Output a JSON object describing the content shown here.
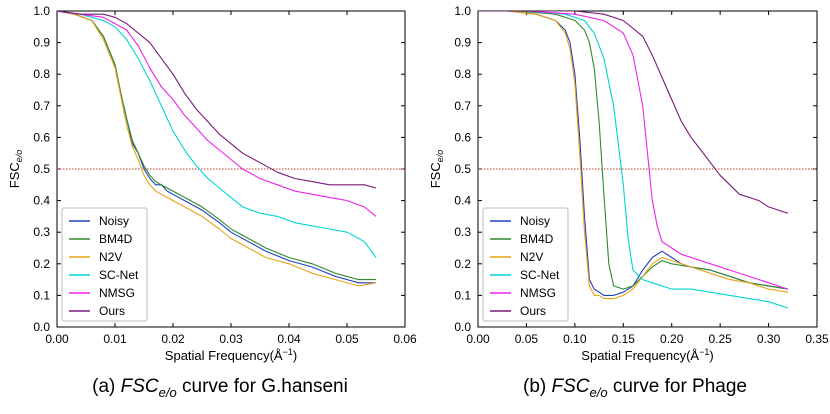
{
  "chart_data": [
    {
      "type": "line",
      "caption_prefix": "(a) ",
      "caption_italic": "FSC",
      "caption_sub": "e/o",
      "caption_suffix": " curve for G.hanseni",
      "xlabel": "Spatial Frequency(Å",
      "xlabel_sup": "−1",
      "xlabel_close": ")",
      "ylabel": "FSC",
      "ylabel_sub": "e/o",
      "xlim": [
        0,
        0.06
      ],
      "ylim": [
        0,
        1.0
      ],
      "xticks": [
        "0.00",
        "0.01",
        "0.02",
        "0.03",
        "0.04",
        "0.05",
        "0.06"
      ],
      "xtick_values": [
        0,
        0.01,
        0.02,
        0.03,
        0.04,
        0.05,
        0.06
      ],
      "yticks": [
        "0.0",
        "0.1",
        "0.2",
        "0.3",
        "0.4",
        "0.5",
        "0.6",
        "0.7",
        "0.8",
        "0.9",
        "1.0"
      ],
      "ytick_values": [
        0,
        0.1,
        0.2,
        0.3,
        0.4,
        0.5,
        0.6,
        0.7,
        0.8,
        0.9,
        1.0
      ],
      "threshold": 0.5,
      "threshold_color": "#c0392b",
      "legend_position": "bottom-left",
      "series": [
        {
          "name": "Noisy",
          "color": "#1f3fbf",
          "x": [
            0,
            0.003,
            0.006,
            0.008,
            0.01,
            0.011,
            0.012,
            0.013,
            0.014,
            0.015,
            0.016,
            0.017,
            0.018,
            0.019,
            0.02,
            0.022,
            0.025,
            0.028,
            0.03,
            0.033,
            0.036,
            0.04,
            0.044,
            0.048,
            0.052,
            0.055
          ],
          "y": [
            1.0,
            0.99,
            0.97,
            0.92,
            0.83,
            0.74,
            0.66,
            0.58,
            0.55,
            0.5,
            0.47,
            0.45,
            0.45,
            0.43,
            0.42,
            0.4,
            0.37,
            0.33,
            0.3,
            0.27,
            0.24,
            0.21,
            0.19,
            0.16,
            0.14,
            0.14
          ]
        },
        {
          "name": "BM4D",
          "color": "#2e8b2e",
          "x": [
            0,
            0.003,
            0.006,
            0.008,
            0.01,
            0.011,
            0.012,
            0.013,
            0.014,
            0.015,
            0.016,
            0.017,
            0.018,
            0.019,
            0.02,
            0.022,
            0.025,
            0.028,
            0.03,
            0.033,
            0.036,
            0.04,
            0.044,
            0.048,
            0.052,
            0.055
          ],
          "y": [
            1.0,
            0.99,
            0.97,
            0.92,
            0.83,
            0.74,
            0.66,
            0.59,
            0.55,
            0.51,
            0.48,
            0.46,
            0.45,
            0.44,
            0.43,
            0.41,
            0.38,
            0.34,
            0.31,
            0.28,
            0.25,
            0.22,
            0.2,
            0.17,
            0.15,
            0.15
          ]
        },
        {
          "name": "N2V",
          "color": "#e8a317",
          "x": [
            0,
            0.003,
            0.006,
            0.008,
            0.01,
            0.011,
            0.012,
            0.013,
            0.014,
            0.015,
            0.016,
            0.017,
            0.018,
            0.019,
            0.02,
            0.022,
            0.025,
            0.028,
            0.03,
            0.033,
            0.036,
            0.04,
            0.044,
            0.048,
            0.052,
            0.055
          ],
          "y": [
            1.0,
            0.99,
            0.97,
            0.91,
            0.82,
            0.73,
            0.64,
            0.57,
            0.53,
            0.48,
            0.45,
            0.43,
            0.42,
            0.41,
            0.4,
            0.38,
            0.35,
            0.31,
            0.28,
            0.25,
            0.22,
            0.2,
            0.17,
            0.15,
            0.13,
            0.14
          ]
        },
        {
          "name": "SC-Net",
          "color": "#00d5d5",
          "x": [
            0,
            0.004,
            0.008,
            0.01,
            0.012,
            0.014,
            0.016,
            0.018,
            0.02,
            0.022,
            0.024,
            0.026,
            0.028,
            0.03,
            0.032,
            0.035,
            0.038,
            0.041,
            0.044,
            0.047,
            0.05,
            0.053,
            0.055
          ],
          "y": [
            1.0,
            0.99,
            0.97,
            0.95,
            0.91,
            0.85,
            0.78,
            0.7,
            0.62,
            0.56,
            0.51,
            0.47,
            0.44,
            0.41,
            0.38,
            0.36,
            0.35,
            0.33,
            0.32,
            0.31,
            0.3,
            0.27,
            0.22
          ]
        },
        {
          "name": "NMSG",
          "color": "#ee22ee",
          "x": [
            0,
            0.004,
            0.008,
            0.01,
            0.012,
            0.014,
            0.016,
            0.018,
            0.02,
            0.022,
            0.024,
            0.026,
            0.028,
            0.03,
            0.032,
            0.035,
            0.038,
            0.041,
            0.044,
            0.047,
            0.05,
            0.053,
            0.055
          ],
          "y": [
            1.0,
            0.99,
            0.98,
            0.96,
            0.94,
            0.89,
            0.82,
            0.76,
            0.72,
            0.67,
            0.63,
            0.59,
            0.56,
            0.53,
            0.5,
            0.47,
            0.45,
            0.43,
            0.42,
            0.41,
            0.4,
            0.38,
            0.35
          ]
        },
        {
          "name": "Ours",
          "color": "#7b1a7b",
          "x": [
            0,
            0.004,
            0.008,
            0.01,
            0.012,
            0.014,
            0.016,
            0.018,
            0.02,
            0.022,
            0.024,
            0.026,
            0.028,
            0.03,
            0.032,
            0.035,
            0.038,
            0.041,
            0.044,
            0.047,
            0.05,
            0.053,
            0.055
          ],
          "y": [
            1.0,
            0.99,
            0.99,
            0.98,
            0.96,
            0.93,
            0.9,
            0.85,
            0.8,
            0.74,
            0.69,
            0.65,
            0.61,
            0.58,
            0.55,
            0.52,
            0.49,
            0.47,
            0.46,
            0.45,
            0.45,
            0.45,
            0.44
          ]
        }
      ]
    },
    {
      "type": "line",
      "caption_prefix": "(b) ",
      "caption_italic": "FSC",
      "caption_sub": "e/o",
      "caption_suffix": " curve for Phage",
      "xlabel": "Spatial Frequency(Å",
      "xlabel_sup": "−1",
      "xlabel_close": ")",
      "ylabel": "FSC",
      "ylabel_sub": "e/o",
      "xlim": [
        0,
        0.35
      ],
      "ylim": [
        0,
        1.0
      ],
      "xticks": [
        "0.00",
        "0.05",
        "0.10",
        "0.15",
        "0.20",
        "0.25",
        "0.30",
        "0.35"
      ],
      "xtick_values": [
        0,
        0.05,
        0.1,
        0.15,
        0.2,
        0.25,
        0.3,
        0.35
      ],
      "yticks": [
        "0.0",
        "0.1",
        "0.2",
        "0.3",
        "0.4",
        "0.5",
        "0.6",
        "0.7",
        "0.8",
        "0.9",
        "1.0"
      ],
      "ytick_values": [
        0,
        0.1,
        0.2,
        0.3,
        0.4,
        0.5,
        0.6,
        0.7,
        0.8,
        0.9,
        1.0
      ],
      "threshold": 0.5,
      "threshold_color": "#c0392b",
      "legend_position": "bottom-left",
      "series": [
        {
          "name": "Noisy",
          "color": "#1f3fbf",
          "x": [
            0,
            0.03,
            0.06,
            0.08,
            0.09,
            0.095,
            0.1,
            0.105,
            0.11,
            0.115,
            0.12,
            0.125,
            0.13,
            0.14,
            0.15,
            0.16,
            0.17,
            0.18,
            0.19,
            0.2,
            0.21,
            0.22,
            0.24,
            0.26,
            0.28,
            0.3,
            0.32
          ],
          "y": [
            1.0,
            1.0,
            0.99,
            0.97,
            0.94,
            0.9,
            0.8,
            0.6,
            0.35,
            0.15,
            0.12,
            0.11,
            0.1,
            0.1,
            0.11,
            0.13,
            0.18,
            0.22,
            0.24,
            0.22,
            0.2,
            0.19,
            0.18,
            0.16,
            0.14,
            0.13,
            0.12
          ]
        },
        {
          "name": "BM4D",
          "color": "#2e8b2e",
          "x": [
            0,
            0.04,
            0.08,
            0.1,
            0.11,
            0.115,
            0.12,
            0.125,
            0.13,
            0.135,
            0.14,
            0.15,
            0.16,
            0.17,
            0.18,
            0.19,
            0.2,
            0.22,
            0.24,
            0.26,
            0.28,
            0.3,
            0.32
          ],
          "y": [
            1.0,
            1.0,
            0.99,
            0.97,
            0.94,
            0.9,
            0.82,
            0.65,
            0.42,
            0.2,
            0.13,
            0.12,
            0.13,
            0.16,
            0.19,
            0.21,
            0.2,
            0.19,
            0.18,
            0.16,
            0.14,
            0.13,
            0.12
          ]
        },
        {
          "name": "N2V",
          "color": "#e8a317",
          "x": [
            0,
            0.03,
            0.06,
            0.08,
            0.09,
            0.095,
            0.1,
            0.105,
            0.11,
            0.115,
            0.12,
            0.125,
            0.13,
            0.14,
            0.15,
            0.16,
            0.17,
            0.18,
            0.19,
            0.2,
            0.22,
            0.24,
            0.26,
            0.28,
            0.3,
            0.32
          ],
          "y": [
            1.0,
            1.0,
            0.99,
            0.97,
            0.93,
            0.88,
            0.77,
            0.55,
            0.3,
            0.13,
            0.1,
            0.1,
            0.09,
            0.09,
            0.1,
            0.12,
            0.16,
            0.2,
            0.22,
            0.21,
            0.19,
            0.17,
            0.15,
            0.14,
            0.12,
            0.11
          ]
        },
        {
          "name": "SC-Net",
          "color": "#00d5d5",
          "x": [
            0,
            0.05,
            0.09,
            0.11,
            0.12,
            0.13,
            0.14,
            0.15,
            0.155,
            0.16,
            0.17,
            0.18,
            0.19,
            0.2,
            0.22,
            0.24,
            0.26,
            0.28,
            0.3,
            0.32
          ],
          "y": [
            1.0,
            1.0,
            0.99,
            0.97,
            0.93,
            0.85,
            0.7,
            0.45,
            0.28,
            0.18,
            0.15,
            0.14,
            0.13,
            0.12,
            0.12,
            0.11,
            0.1,
            0.09,
            0.08,
            0.06
          ]
        },
        {
          "name": "NMSG",
          "color": "#ee22ee",
          "x": [
            0,
            0.05,
            0.1,
            0.13,
            0.15,
            0.16,
            0.17,
            0.175,
            0.18,
            0.185,
            0.19,
            0.2,
            0.21,
            0.22,
            0.24,
            0.26,
            0.28,
            0.3,
            0.32
          ],
          "y": [
            1.0,
            1.0,
            0.99,
            0.97,
            0.93,
            0.86,
            0.7,
            0.55,
            0.4,
            0.32,
            0.27,
            0.25,
            0.23,
            0.22,
            0.2,
            0.18,
            0.16,
            0.14,
            0.12
          ]
        },
        {
          "name": "Ours",
          "color": "#7b1a7b",
          "x": [
            0,
            0.05,
            0.1,
            0.13,
            0.15,
            0.17,
            0.18,
            0.19,
            0.2,
            0.21,
            0.22,
            0.23,
            0.24,
            0.25,
            0.26,
            0.27,
            0.28,
            0.29,
            0.3,
            0.31,
            0.32
          ],
          "y": [
            1.0,
            1.0,
            1.0,
            0.99,
            0.97,
            0.92,
            0.86,
            0.79,
            0.72,
            0.65,
            0.6,
            0.56,
            0.52,
            0.48,
            0.45,
            0.42,
            0.41,
            0.4,
            0.38,
            0.37,
            0.36
          ]
        }
      ]
    }
  ]
}
